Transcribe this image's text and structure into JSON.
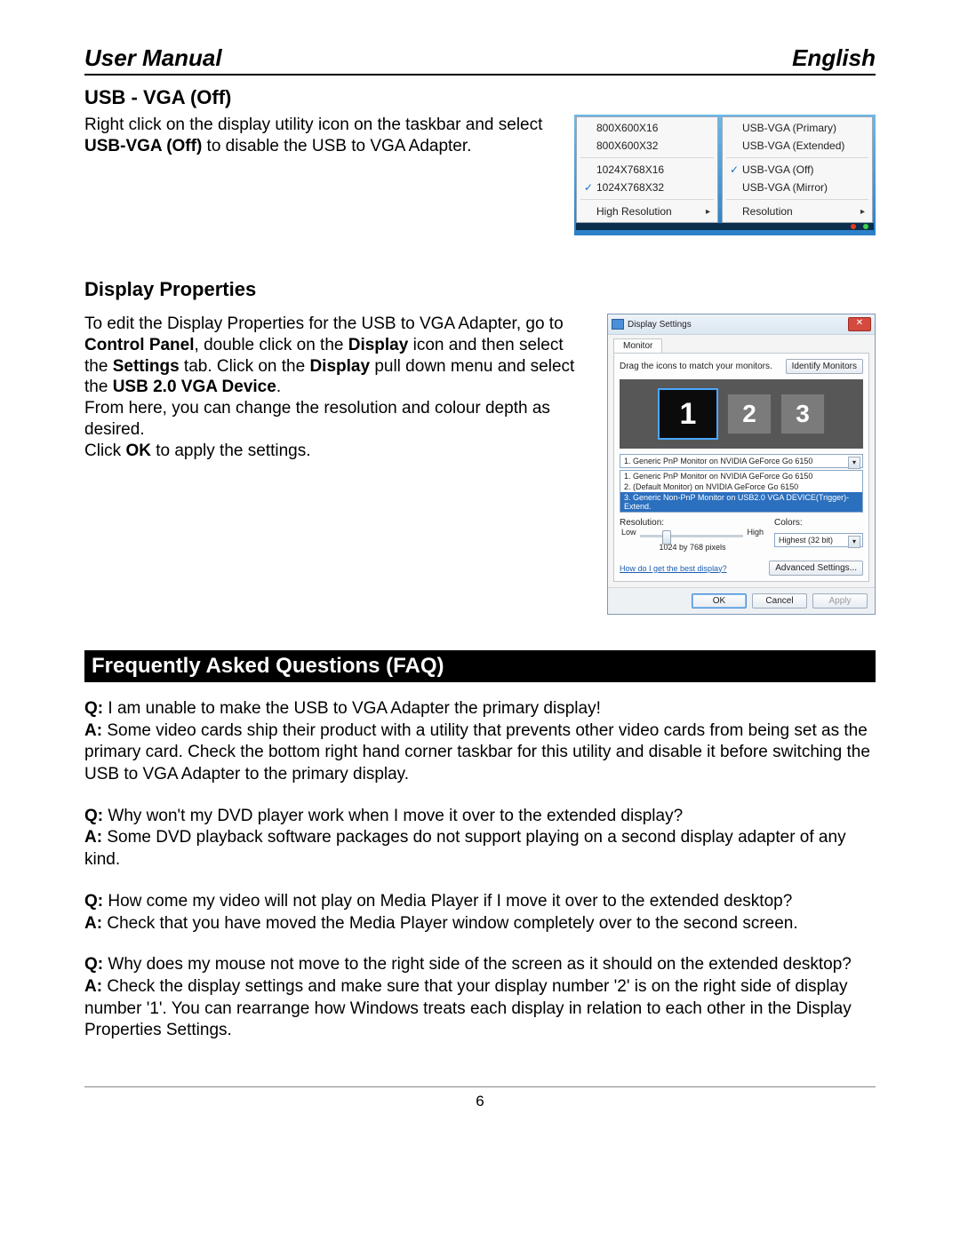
{
  "header": {
    "left": "User Manual",
    "right": "English"
  },
  "section1": {
    "heading": "USB - VGA (Off)",
    "para1_pre": "Right click on the display utility icon on the taskbar and select ",
    "para1_bold": "USB-VGA (Off)",
    "para1_post": " to disable the USB to VGA Adapter."
  },
  "menu_left": [
    {
      "label": "800X600X16",
      "checked": false,
      "sep_after": false
    },
    {
      "label": "800X600X32",
      "checked": false,
      "sep_after": true
    },
    {
      "label": "1024X768X16",
      "checked": false,
      "sep_after": false
    },
    {
      "label": "1024X768X32",
      "checked": true,
      "sep_after": true
    },
    {
      "label": "High Resolution",
      "checked": false,
      "submenu": true
    }
  ],
  "menu_right": [
    {
      "label": "USB-VGA (Primary)",
      "checked": false,
      "sep_after": false
    },
    {
      "label": "USB-VGA (Extended)",
      "checked": false,
      "sep_after": true
    },
    {
      "label": "USB-VGA (Off)",
      "checked": true,
      "sep_after": false
    },
    {
      "label": "USB-VGA (Mirror)",
      "checked": false,
      "sep_after": true
    },
    {
      "label": "Resolution",
      "checked": false,
      "submenu": true
    }
  ],
  "section2": {
    "heading": "Display Properties",
    "p1_t1": "To edit the Display Properties for the USB to VGA Adapter, go to ",
    "p1_b1": "Control Panel",
    "p1_t2": ", double click on the ",
    "p1_b2": "Display",
    "p1_t3": " icon and then select the ",
    "p1_b3": "Settings",
    "p1_t4": " tab. Click on the ",
    "p1_b4": "Display",
    "p1_t5": " pull down menu and select the ",
    "p1_b5": "USB 2.0 VGA Device",
    "p1_t6": ".",
    "p2": "From here, you can change the resolution and colour depth as desired.",
    "p3_t1": "Click ",
    "p3_b1": "OK",
    "p3_t2": " to apply the settings."
  },
  "dialog": {
    "title": "Display Settings",
    "tab": "Monitor",
    "hint": "Drag the icons to match your monitors.",
    "identify": "Identify Monitors",
    "monitors": [
      "1",
      "2",
      "3"
    ],
    "combo_selected": "1. Generic PnP Monitor on NVIDIA GeForce Go 6150",
    "combo_list": [
      {
        "text": "1. Generic PnP Monitor on NVIDIA GeForce Go 6150",
        "sel": false
      },
      {
        "text": "2. (Default Monitor) on NVIDIA GeForce Go 6150",
        "sel": false
      },
      {
        "text": "3. Generic Non-PnP Monitor on USB2.0 VGA DEVICE(Trigger)-Extend.",
        "sel": true
      }
    ],
    "res_label": "Resolution:",
    "low": "Low",
    "high": "High",
    "res_value": "1024 by 768 pixels",
    "colors_label": "Colors:",
    "colors_value": "Highest (32 bit)",
    "help_link": "How do I get the best display?",
    "adv": "Advanced Settings...",
    "ok": "OK",
    "cancel": "Cancel",
    "apply": "Apply"
  },
  "faq": {
    "heading": "Frequently Asked Questions (FAQ)",
    "items": [
      {
        "q": "I am unable to make the USB to VGA Adapter the primary display!",
        "a": "Some video cards ship their product with a utility that prevents other video cards from being set as the primary card. Check the bottom right hand corner taskbar for this utility and disable it before switching the USB to VGA Adapter to the primary display."
      },
      {
        "q": "Why won't my DVD player work when I move it over to the extended display?",
        "a": "Some DVD playback software packages do not support playing on a second display adapter of any kind."
      },
      {
        "q": "How come my video will not play on Media Player if I move it over to the extended desktop?",
        "a": "Check that you have moved the Media Player window completely over to the second screen."
      },
      {
        "q": "Why does my mouse not move to the right side of the screen as it should on the extended desktop?",
        "a": "Check the display settings and make sure that your display number '2' is on the right side of display number '1'. You can rearrange how Windows treats each display in relation to each other in the Display Properties Settings."
      }
    ]
  },
  "page_number": "6",
  "colors": {
    "menu_check": "#1b6fc2",
    "dlg_title_grad_top": "#eef3f8",
    "dlg_close": "#d44a3f",
    "mon_sel_border": "#4aa8ff",
    "link": "#1b5fb4",
    "combo_sel_bg": "#2b6fbf"
  }
}
